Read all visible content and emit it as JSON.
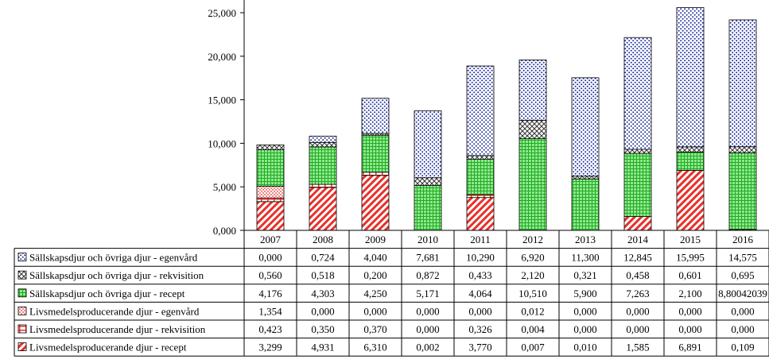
{
  "chart_data": {
    "type": "bar",
    "stacked": true,
    "categories": [
      "2007",
      "2008",
      "2009",
      "2010",
      "2011",
      "2012",
      "2013",
      "2014",
      "2015",
      "2016"
    ],
    "ylim": [
      0,
      25000
    ],
    "y_ticks": [
      "0,000",
      "5,000",
      "10,000",
      "15,000",
      "20,000",
      "25,000"
    ],
    "grid": false,
    "legend": "table-left",
    "series": [
      {
        "name": "Livsmedelsproducerande djur - recept",
        "pattern": "red-diagonal",
        "color": "#e8302a",
        "values": [
          3.299,
          4.931,
          6.31,
          0.002,
          3.77,
          0.007,
          0.01,
          1.585,
          6.891,
          0.109
        ],
        "labels": [
          "3,299",
          "4,931",
          "6,310",
          "0,002",
          "3,770",
          "0,007",
          "0,010",
          "1,585",
          "6,891",
          "0,109"
        ]
      },
      {
        "name": "Livsmedelsproducerande djur - rekvisition",
        "pattern": "red-hgrid",
        "color": "#e8302a",
        "values": [
          0.423,
          0.35,
          0.37,
          0,
          0.326,
          0.004,
          0,
          0,
          0,
          0
        ],
        "labels": [
          "0,423",
          "0,350",
          "0,370",
          "0,000",
          "0,326",
          "0,004",
          "0,000",
          "0,000",
          "0,000",
          "0,000"
        ]
      },
      {
        "name": "Livsmedelsproducerande djur - egenvård",
        "pattern": "red-dots",
        "color": "#e8302a",
        "values": [
          1.354,
          0,
          0,
          0,
          0,
          0.012,
          0,
          0,
          0,
          0
        ],
        "labels": [
          "1,354",
          "0,000",
          "0,000",
          "0,000",
          "0,000",
          "0,012",
          "0,000",
          "0,000",
          "0,000",
          "0,000"
        ]
      },
      {
        "name": "Sällskapsdjur och övriga djur - recept",
        "pattern": "green-grid",
        "color": "#44cc44",
        "values": [
          4.176,
          4.303,
          4.25,
          5.171,
          4.064,
          10.51,
          5.9,
          7.263,
          2.1,
          8.80042039
        ],
        "labels": [
          "4,176",
          "4,303",
          "4,250",
          "5,171",
          "4,064",
          "10,510",
          "5,900",
          "7,263",
          "2,100",
          "8,80042039"
        ]
      },
      {
        "name": "Sällskapsdjur och övriga djur - rekvisition",
        "pattern": "cross",
        "color": "#333333",
        "values": [
          0.56,
          0.518,
          0.2,
          0.872,
          0.433,
          2.12,
          0.321,
          0.458,
          0.601,
          0.695
        ],
        "labels": [
          "0,560",
          "0,518",
          "0,200",
          "0,872",
          "0,433",
          "2,120",
          "0,321",
          "0,458",
          "0,601",
          "0,695"
        ]
      },
      {
        "name": "Sällskapsdjur och övriga djur - egenvård",
        "pattern": "blue-dots",
        "color": "#1a2a9a",
        "values": [
          0,
          0.724,
          4.04,
          7.681,
          10.29,
          6.92,
          11.3,
          12.845,
          15.995,
          14.575
        ],
        "labels": [
          "0,000",
          "0,724",
          "4,040",
          "7,681",
          "10,290",
          "6,920",
          "11,300",
          "12,845",
          "15,995",
          "14,575"
        ]
      }
    ],
    "table_row_order": [
      5,
      4,
      3,
      2,
      1,
      0
    ]
  }
}
